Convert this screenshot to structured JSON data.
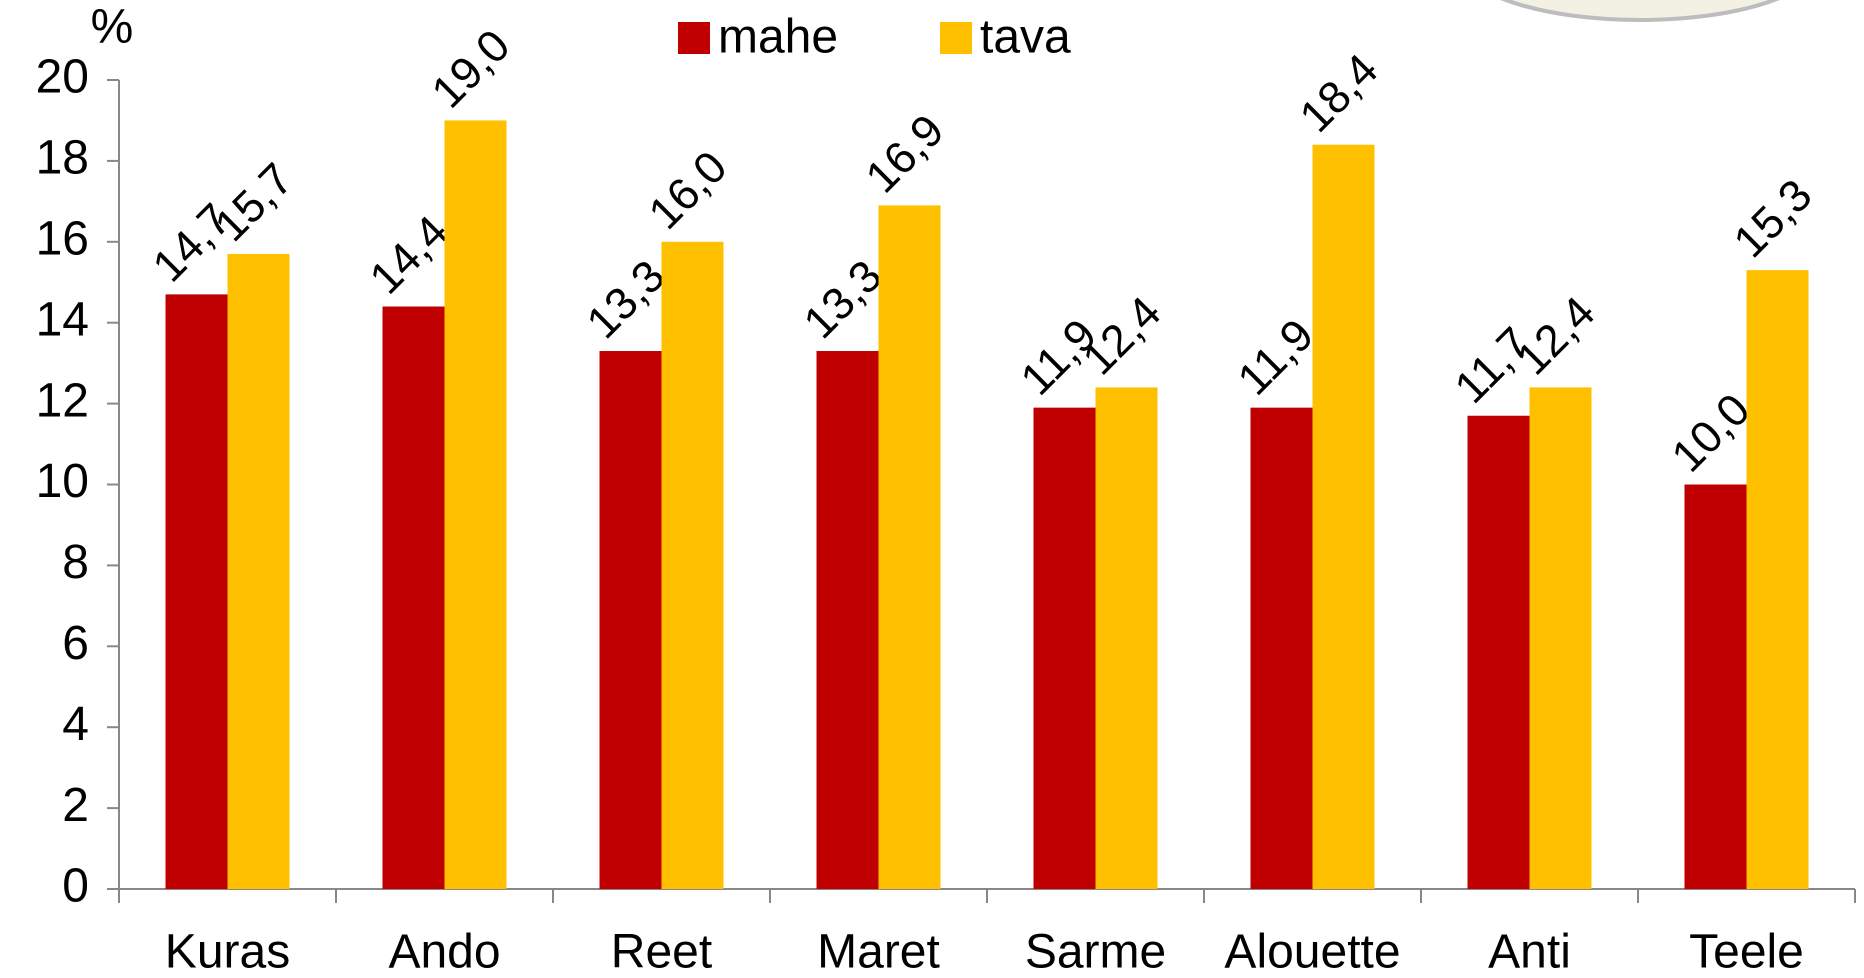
{
  "chart_data": {
    "type": "bar",
    "y_label": "%",
    "categories": [
      "Kuras",
      "Ando",
      "Reet",
      "Maret",
      "Sarme",
      "Alouette",
      "Anti",
      "Teele"
    ],
    "series": [
      {
        "name": "mahe",
        "color": "#c00000",
        "values": [
          14.7,
          14.4,
          13.3,
          13.3,
          11.9,
          11.9,
          11.7,
          10.0
        ],
        "value_labels": [
          "14,7",
          "14,4",
          "13,3",
          "13,3",
          "11,9",
          "11,9",
          "11,7",
          "10,0"
        ]
      },
      {
        "name": "tava",
        "color": "#ffc000",
        "values": [
          15.7,
          19.0,
          16.0,
          16.9,
          12.4,
          18.4,
          12.4,
          15.3
        ],
        "value_labels": [
          "15,7",
          "19,0",
          "16,0",
          "16,9",
          "12,4",
          "18,4",
          "12,4",
          "15,3"
        ]
      }
    ],
    "ylim": [
      0,
      20
    ],
    "yticks": [
      0,
      2,
      4,
      6,
      8,
      10,
      12,
      14,
      16,
      18,
      20
    ],
    "grid": false
  }
}
